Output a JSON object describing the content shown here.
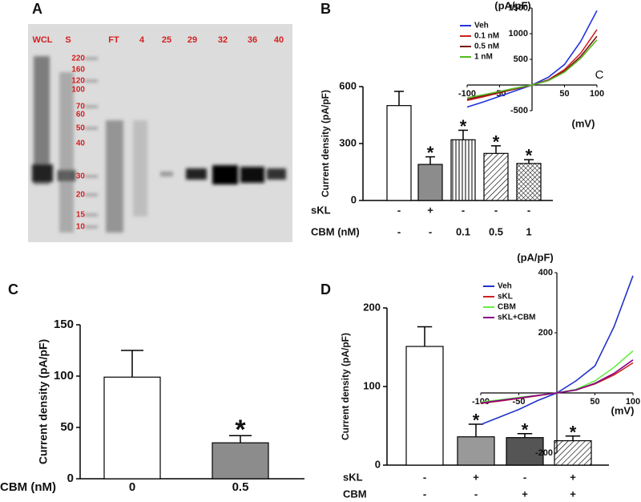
{
  "panel_labels": [
    "A",
    "B",
    "C",
    "D"
  ],
  "gel": {
    "lanes": [
      "WCL",
      "S",
      "FT",
      "4",
      "25",
      "29",
      "32",
      "36",
      "40"
    ],
    "markers": [
      "220",
      "160",
      "120",
      "100",
      "70",
      "60",
      "50",
      "40",
      "30",
      "20",
      "15",
      "10"
    ]
  },
  "chart_data": [
    {
      "type": "bar",
      "ylabel": "Current density (pA/pF)",
      "ylim": [
        0,
        600
      ],
      "yticks": [
        0,
        300,
        600
      ],
      "values": [
        500,
        190,
        320,
        248,
        195
      ],
      "errors": [
        75,
        40,
        50,
        40,
        20
      ],
      "colors": [
        "#ffffff",
        "#8c8c8c",
        "#ffffff",
        "#ffffff",
        "#ffffff"
      ],
      "patterns": [
        "solid",
        "solid",
        "vertical",
        "diagonal",
        "crosshatch"
      ],
      "significance": [
        null,
        "*",
        "*",
        "*",
        "*"
      ],
      "condition_rows": [
        {
          "name": "sKL",
          "labels": [
            "-",
            "+",
            "-",
            "-",
            "-"
          ]
        },
        {
          "name": "CBM (nM)",
          "labels": [
            "-",
            "-",
            "0.1",
            "0.5",
            "1"
          ]
        }
      ]
    },
    {
      "type": "line",
      "ylabel": "(pA/pF)",
      "xlabel": "(mV)",
      "annotation": "C",
      "xlim": [
        -100,
        100
      ],
      "xticks": [
        -100,
        -50,
        50,
        100
      ],
      "ylim": [
        -500,
        1500
      ],
      "yticks": [
        -500,
        500,
        1000,
        1500
      ],
      "legend": "upper left",
      "x": [
        -100,
        -75,
        -50,
        -25,
        0,
        25,
        50,
        75,
        100
      ],
      "series": [
        {
          "name": "Veh",
          "color": "#2233dd",
          "values": [
            -430,
            -330,
            -220,
            -110,
            0,
            150,
            400,
            850,
            1450
          ]
        },
        {
          "name": "0.1 nM",
          "color": "#cc2222",
          "values": [
            -300,
            -230,
            -150,
            -75,
            0,
            100,
            300,
            620,
            1080
          ]
        },
        {
          "name": "0.5 nM",
          "color": "#7a1010",
          "values": [
            -280,
            -210,
            -140,
            -70,
            0,
            90,
            270,
            560,
            950
          ]
        },
        {
          "name": "1 nM",
          "color": "#55bb22",
          "values": [
            -250,
            -190,
            -125,
            -60,
            0,
            85,
            250,
            520,
            880
          ]
        }
      ]
    },
    {
      "type": "bar",
      "ylabel": "Current density (pA/pF)",
      "ylim": [
        0,
        150
      ],
      "yticks": [
        0,
        50,
        100,
        150
      ],
      "values": [
        99,
        35
      ],
      "errors": [
        26,
        7
      ],
      "colors": [
        "#ffffff",
        "#8c8c8c"
      ],
      "patterns": [
        "solid",
        "solid"
      ],
      "significance": [
        null,
        "*"
      ],
      "condition_rows": [
        {
          "name": "CBM (nM)",
          "labels": [
            "0",
            "0.5"
          ]
        }
      ]
    },
    {
      "type": "bar",
      "ylabel": "Current density (pA/pF)",
      "ylim": [
        0,
        200
      ],
      "yticks": [
        0,
        100,
        200
      ],
      "values": [
        151,
        36,
        35,
        31
      ],
      "errors": [
        25,
        16,
        5,
        6
      ],
      "colors": [
        "#ffffff",
        "#999999",
        "#555555",
        "#ffffff"
      ],
      "patterns": [
        "solid",
        "solid",
        "solid",
        "diagonal"
      ],
      "significance": [
        null,
        "*",
        "*",
        "*"
      ],
      "condition_rows": [
        {
          "name": "sKL",
          "labels": [
            "-",
            "+",
            "-",
            "+"
          ]
        },
        {
          "name": "CBM",
          "labels": [
            "-",
            "-",
            "+",
            "+"
          ]
        }
      ]
    },
    {
      "type": "line",
      "ylabel": "(pA/pF)",
      "xlabel": "(mV)",
      "xlim": [
        -100,
        100
      ],
      "xticks": [
        -100,
        -50,
        50,
        100
      ],
      "ylim": [
        -200,
        400
      ],
      "yticks": [
        -200,
        200,
        400
      ],
      "legend": "upper left",
      "x": [
        -100,
        -75,
        -50,
        -25,
        0,
        25,
        50,
        75,
        100
      ],
      "series": [
        {
          "name": "Veh",
          "color": "#2233cc",
          "values": [
            -105,
            -80,
            -55,
            -25,
            0,
            40,
            90,
            220,
            390
          ]
        },
        {
          "name": "sKL",
          "color": "#cc2222",
          "values": [
            -35,
            -27,
            -18,
            -9,
            0,
            10,
            30,
            60,
            100
          ]
        },
        {
          "name": "CBM",
          "color": "#66ee44",
          "values": [
            -30,
            -23,
            -15,
            -8,
            0,
            12,
            40,
            85,
            140
          ]
        },
        {
          "name": "sKL+CBM",
          "color": "#880088",
          "values": [
            -33,
            -25,
            -17,
            -8,
            0,
            10,
            32,
            65,
            110
          ]
        }
      ]
    }
  ]
}
